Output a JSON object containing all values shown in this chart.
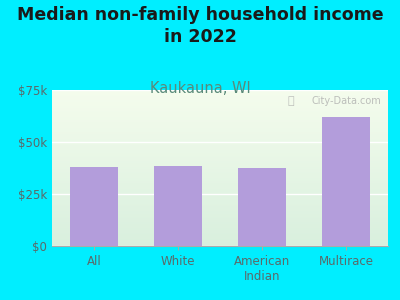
{
  "title": "Median non-family household income\nin 2022",
  "subtitle": "Kaukauna, WI",
  "categories": [
    "All",
    "White",
    "American\nIndian",
    "Multirace"
  ],
  "values": [
    38000,
    38500,
    37500,
    62000
  ],
  "bar_color": "#b39ddb",
  "background_outer": "#00eeff",
  "title_color": "#1a1a1a",
  "subtitle_color": "#5a8a7a",
  "tick_label_color": "#5a6a6a",
  "ylim": [
    0,
    75000
  ],
  "yticks": [
    0,
    25000,
    50000,
    75000
  ],
  "ytick_labels": [
    "$0",
    "$25k",
    "$50k",
    "$75k"
  ],
  "watermark": "City-Data.com",
  "title_fontsize": 12.5,
  "subtitle_fontsize": 10.5,
  "gradient_top": "#f5f8e8",
  "gradient_bottom": "#ddeedd"
}
